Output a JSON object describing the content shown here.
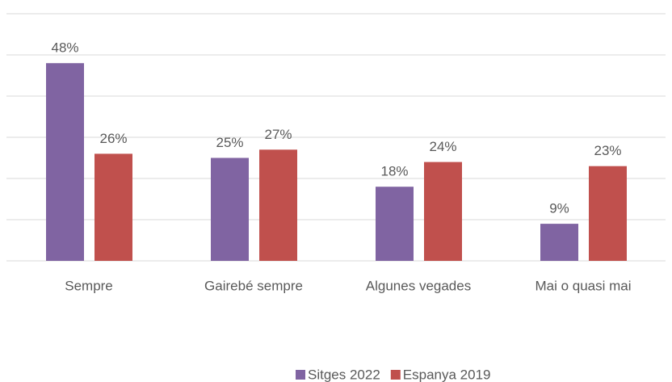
{
  "chart_data": {
    "type": "bar",
    "categories": [
      "Sempre",
      "Gairebé sempre",
      "Algunes vegades",
      "Mai o quasi mai"
    ],
    "series": [
      {
        "name": "Sitges 2022",
        "color": "#8064a2",
        "values": [
          48,
          25,
          18,
          9
        ],
        "value_labels": [
          "48%",
          "25%",
          "18%",
          "9%"
        ]
      },
      {
        "name": "Espanya 2019",
        "color": "#c0504d",
        "values": [
          26,
          27,
          24,
          23
        ],
        "value_labels": [
          "26%",
          "27%",
          "24%",
          "23%"
        ]
      }
    ],
    "ylim": [
      0,
      60
    ],
    "yticks": [
      0,
      10,
      20,
      30,
      40,
      50,
      60
    ],
    "grid": true,
    "legend": "bottom"
  }
}
